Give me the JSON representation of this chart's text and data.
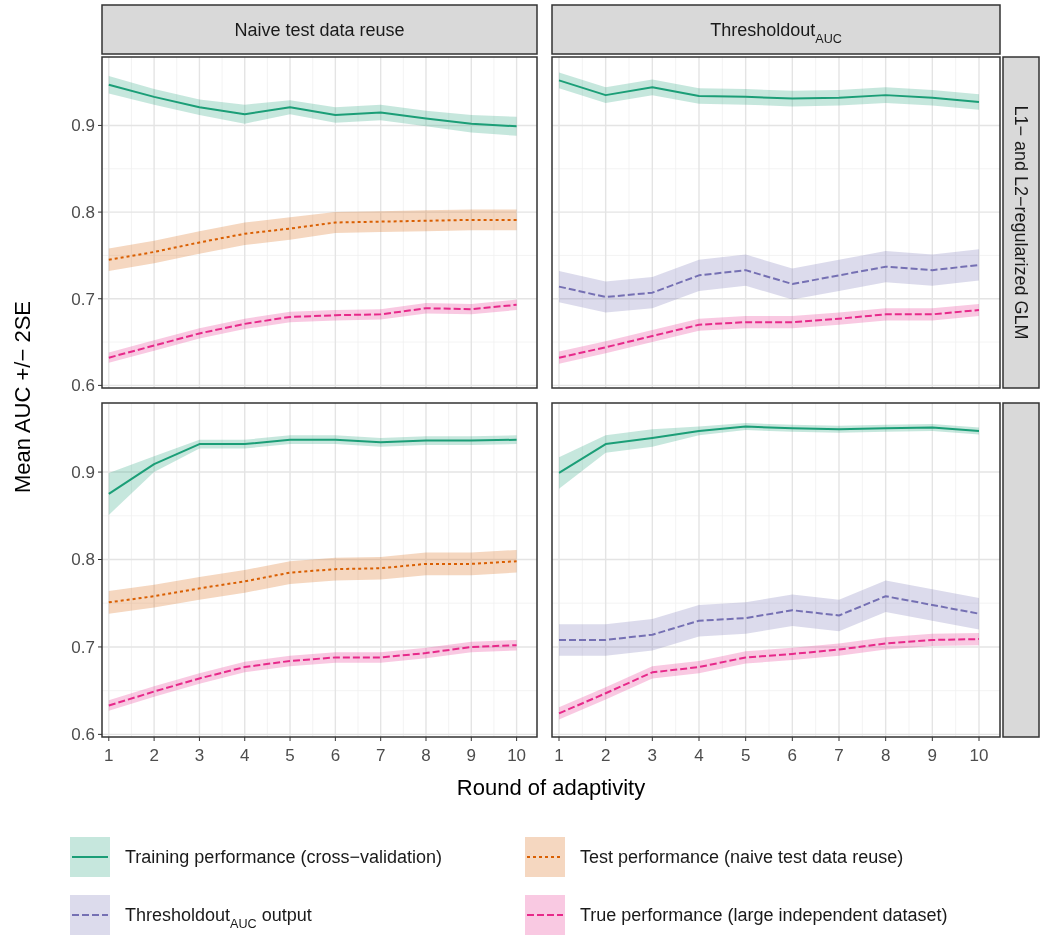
{
  "chart_data": [
    {
      "type": "line",
      "title": "Naive test data reuse",
      "ylabel": "Mean AUC +/− 2SE",
      "x": [
        1,
        2,
        3,
        4,
        5,
        6,
        7,
        8,
        9,
        10
      ],
      "xlim": [
        0.85,
        10.45
      ],
      "xticks": [
        1,
        2,
        3,
        4,
        5,
        6,
        7,
        8,
        9,
        10
      ],
      "ylim": [
        0.597,
        0.979
      ],
      "yticks": [
        0.6,
        0.7,
        0.8,
        0.9
      ],
      "grid": true,
      "legend": "bottom",
      "tick_labels": "y",
      "series": [
        {
          "name": "Training performance (cross−validation)",
          "color": "#1b9e77",
          "line_style": "solid",
          "values": [
            0.947,
            0.933,
            0.921,
            0.913,
            0.921,
            0.912,
            0.915,
            0.908,
            0.902,
            0.899
          ],
          "lower": [
            0.937,
            0.924,
            0.912,
            0.902,
            0.913,
            0.903,
            0.906,
            0.899,
            0.892,
            0.888
          ],
          "upper": [
            0.957,
            0.942,
            0.93,
            0.924,
            0.929,
            0.921,
            0.924,
            0.917,
            0.912,
            0.91
          ]
        },
        {
          "name": "Test performance (naive test data reuse)",
          "color": "#d95f02",
          "line_style": "dotted",
          "values": [
            0.745,
            0.754,
            0.765,
            0.775,
            0.781,
            0.788,
            0.789,
            0.79,
            0.791,
            0.791
          ],
          "lower": [
            0.732,
            0.741,
            0.752,
            0.762,
            0.768,
            0.776,
            0.777,
            0.778,
            0.779,
            0.779
          ],
          "upper": [
            0.758,
            0.767,
            0.778,
            0.788,
            0.794,
            0.8,
            0.801,
            0.802,
            0.803,
            0.803
          ]
        },
        {
          "name": "True performance (large independent dataset)",
          "color": "#e7298a",
          "line_style": "dashed",
          "values": [
            0.632,
            0.646,
            0.66,
            0.671,
            0.679,
            0.681,
            0.682,
            0.689,
            0.688,
            0.693
          ],
          "lower": [
            0.626,
            0.64,
            0.654,
            0.665,
            0.673,
            0.675,
            0.676,
            0.683,
            0.682,
            0.687
          ],
          "upper": [
            0.638,
            0.652,
            0.666,
            0.677,
            0.685,
            0.687,
            0.688,
            0.695,
            0.694,
            0.699
          ]
        }
      ]
    },
    {
      "type": "line",
      "title": "Thresholdout$_{AUC}$",
      "annotations": [
        "L1− and L2−regularized GLM"
      ],
      "x": [
        1,
        2,
        3,
        4,
        5,
        6,
        7,
        8,
        9,
        10
      ],
      "xlim": [
        0.85,
        10.45
      ],
      "xticks": [
        1,
        2,
        3,
        4,
        5,
        6,
        7,
        8,
        9,
        10
      ],
      "ylim": [
        0.597,
        0.979
      ],
      "yticks": [
        0.6,
        0.7,
        0.8,
        0.9
      ],
      "grid": true,
      "tick_labels": false,
      "series": [
        {
          "color": "#1b9e77",
          "line_style": "solid",
          "values": [
            0.952,
            0.935,
            0.944,
            0.934,
            0.933,
            0.931,
            0.932,
            0.935,
            0.932,
            0.927
          ],
          "lower": [
            0.943,
            0.926,
            0.935,
            0.925,
            0.924,
            0.922,
            0.923,
            0.926,
            0.923,
            0.918
          ],
          "upper": [
            0.961,
            0.944,
            0.953,
            0.943,
            0.942,
            0.94,
            0.941,
            0.944,
            0.941,
            0.936
          ]
        },
        {
          "name": "Thresholdout$_{AUC}$ output",
          "color": "#7570b3",
          "line_style": "dashed",
          "values": [
            0.714,
            0.702,
            0.707,
            0.727,
            0.733,
            0.717,
            0.727,
            0.737,
            0.733,
            0.739
          ],
          "lower": [
            0.696,
            0.684,
            0.689,
            0.709,
            0.715,
            0.699,
            0.709,
            0.719,
            0.715,
            0.721
          ],
          "upper": [
            0.732,
            0.72,
            0.725,
            0.745,
            0.751,
            0.735,
            0.745,
            0.755,
            0.751,
            0.757
          ]
        },
        {
          "color": "#e7298a",
          "line_style": "dashed",
          "values": [
            0.632,
            0.644,
            0.657,
            0.67,
            0.673,
            0.673,
            0.677,
            0.682,
            0.682,
            0.687
          ],
          "lower": [
            0.625,
            0.637,
            0.65,
            0.663,
            0.666,
            0.666,
            0.67,
            0.675,
            0.675,
            0.68
          ],
          "upper": [
            0.639,
            0.651,
            0.664,
            0.677,
            0.68,
            0.68,
            0.684,
            0.689,
            0.689,
            0.694
          ]
        }
      ]
    },
    {
      "type": "line",
      "xlabel": "Round of adaptivity",
      "x": [
        1,
        2,
        3,
        4,
        5,
        6,
        7,
        8,
        9,
        10
      ],
      "xlim": [
        0.85,
        10.45
      ],
      "xticks": [
        1,
        2,
        3,
        4,
        5,
        6,
        7,
        8,
        9,
        10
      ],
      "ylim": [
        0.597,
        0.979
      ],
      "yticks": [
        0.6,
        0.7,
        0.8,
        0.9
      ],
      "grid": true,
      "series": [
        {
          "color": "#1b9e77",
          "line_style": "solid",
          "values": [
            0.875,
            0.909,
            0.932,
            0.932,
            0.937,
            0.937,
            0.934,
            0.936,
            0.936,
            0.937
          ],
          "lower": [
            0.851,
            0.9,
            0.927,
            0.927,
            0.932,
            0.932,
            0.929,
            0.931,
            0.931,
            0.932
          ],
          "upper": [
            0.899,
            0.918,
            0.937,
            0.937,
            0.942,
            0.942,
            0.939,
            0.941,
            0.941,
            0.942
          ]
        },
        {
          "color": "#d95f02",
          "line_style": "dotted",
          "values": [
            0.751,
            0.758,
            0.767,
            0.775,
            0.785,
            0.789,
            0.79,
            0.795,
            0.795,
            0.798
          ],
          "lower": [
            0.738,
            0.745,
            0.754,
            0.762,
            0.772,
            0.776,
            0.777,
            0.782,
            0.782,
            0.785
          ],
          "upper": [
            0.764,
            0.771,
            0.78,
            0.788,
            0.798,
            0.802,
            0.803,
            0.808,
            0.808,
            0.811
          ]
        },
        {
          "color": "#e7298a",
          "line_style": "dashed",
          "values": [
            0.633,
            0.649,
            0.664,
            0.677,
            0.684,
            0.688,
            0.688,
            0.693,
            0.7,
            0.702
          ],
          "lower": [
            0.627,
            0.643,
            0.658,
            0.671,
            0.678,
            0.682,
            0.682,
            0.687,
            0.694,
            0.696
          ],
          "upper": [
            0.639,
            0.655,
            0.67,
            0.683,
            0.69,
            0.694,
            0.694,
            0.699,
            0.706,
            0.708
          ]
        }
      ]
    },
    {
      "type": "line",
      "x": [
        1,
        2,
        3,
        4,
        5,
        6,
        7,
        8,
        9,
        10
      ],
      "xlim": [
        0.85,
        10.45
      ],
      "xticks": [
        1,
        2,
        3,
        4,
        5,
        6,
        7,
        8,
        9,
        10
      ],
      "ylim": [
        0.597,
        0.979
      ],
      "yticks": [
        0.6,
        0.7,
        0.8,
        0.9
      ],
      "grid": true,
      "tick_labels": "x",
      "series": [
        {
          "color": "#1b9e77",
          "line_style": "solid",
          "values": [
            0.899,
            0.932,
            0.939,
            0.947,
            0.952,
            0.95,
            0.949,
            0.95,
            0.951,
            0.947
          ],
          "lower": [
            0.881,
            0.922,
            0.929,
            0.942,
            0.948,
            0.946,
            0.945,
            0.946,
            0.947,
            0.943
          ],
          "upper": [
            0.917,
            0.942,
            0.949,
            0.952,
            0.956,
            0.954,
            0.953,
            0.954,
            0.955,
            0.951
          ]
        },
        {
          "color": "#7570b3",
          "line_style": "dashed",
          "values": [
            0.708,
            0.708,
            0.714,
            0.73,
            0.733,
            0.742,
            0.736,
            0.758,
            0.748,
            0.738
          ],
          "lower": [
            0.69,
            0.69,
            0.696,
            0.712,
            0.715,
            0.724,
            0.718,
            0.74,
            0.73,
            0.72
          ],
          "upper": [
            0.726,
            0.726,
            0.732,
            0.748,
            0.751,
            0.76,
            0.754,
            0.776,
            0.766,
            0.756
          ]
        },
        {
          "color": "#e7298a",
          "line_style": "dashed",
          "values": [
            0.624,
            0.647,
            0.671,
            0.677,
            0.688,
            0.692,
            0.697,
            0.704,
            0.708,
            0.709
          ],
          "lower": [
            0.617,
            0.64,
            0.664,
            0.67,
            0.681,
            0.685,
            0.69,
            0.697,
            0.701,
            0.702
          ],
          "upper": [
            0.631,
            0.654,
            0.678,
            0.684,
            0.695,
            0.699,
            0.704,
            0.711,
            0.715,
            0.716
          ]
        }
      ]
    }
  ]
}
